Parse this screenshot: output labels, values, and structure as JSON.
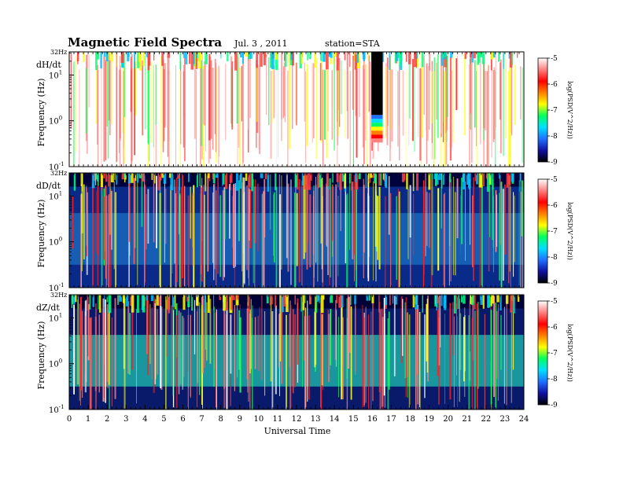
{
  "figure": {
    "title": "Magnetic  Field  Spectra",
    "date": "Jul.  3  , 2011",
    "station": "station=STA"
  },
  "chart_data": {
    "type": "heatmap",
    "xlabel": "Universal Time",
    "x_ticks": [
      "0",
      "1",
      "2",
      "3",
      "4",
      "5",
      "6",
      "7",
      "8",
      "9",
      "10",
      "11",
      "12",
      "13",
      "14",
      "15",
      "16",
      "17",
      "18",
      "19",
      "20",
      "21",
      "22",
      "23",
      "24"
    ],
    "xlim": [
      0,
      24
    ],
    "y_scale": "log",
    "ylabel": "Frequency  (Hz)",
    "y_top_label": "32Hz",
    "y_tick_bases": [
      "10",
      "10",
      "10"
    ],
    "y_tick_exps": [
      "1",
      "0",
      "-1"
    ],
    "colorbar": {
      "label": "log(PSD(V^2/Hz))",
      "ticks": [
        "-5",
        "-6",
        "-7",
        "-8",
        "-9"
      ],
      "range": [
        -9,
        -5
      ],
      "colors": [
        "#000000",
        "#1010a0",
        "#2070ff",
        "#00e0ff",
        "#00ff60",
        "#ffff00",
        "#ff8000",
        "#ff0000",
        "#ff8080",
        "#ffffff"
      ]
    },
    "panels": [
      {
        "component": "dH/dt"
      },
      {
        "component": "dD/dt"
      },
      {
        "component": "dZ/dt"
      }
    ]
  }
}
